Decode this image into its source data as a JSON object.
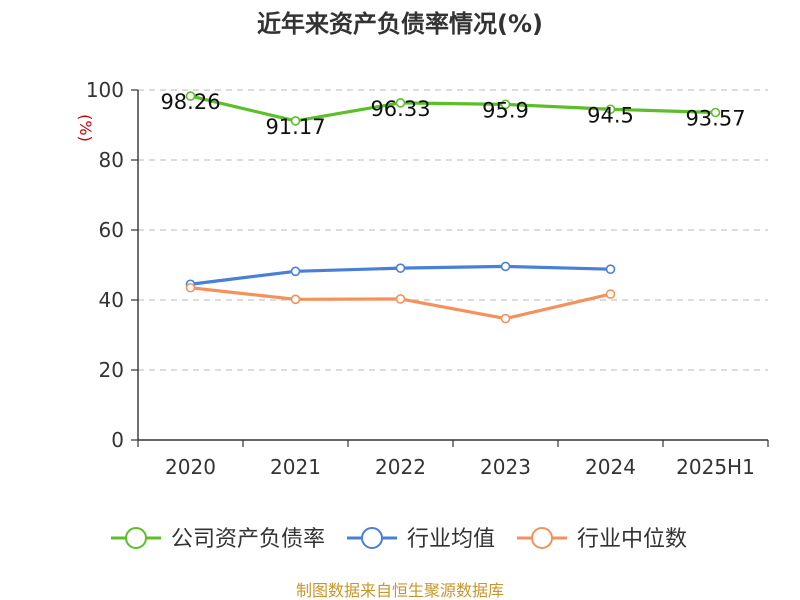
{
  "chart_data": {
    "type": "line",
    "title": "近年来资产负债率情况(%)",
    "ylabel": "(%)",
    "categories": [
      "2020",
      "2021",
      "2022",
      "2023",
      "2024",
      "2025H1"
    ],
    "ylim": [
      0,
      100
    ],
    "yticks": [
      "0",
      "20",
      "40",
      "60",
      "80",
      "100"
    ],
    "grid": true,
    "legend_position": "bottom",
    "series": [
      {
        "name": "公司资产负债率",
        "color": "#5cbf2a",
        "values": [
          98.26,
          91.17,
          96.33,
          95.9,
          94.5,
          93.57
        ],
        "labels": [
          "98.26",
          "91.17",
          "96.33",
          "95.9",
          "94.5",
          "93.57"
        ]
      },
      {
        "name": "行业均值",
        "color": "#4a7fd8",
        "values": [
          44.5,
          48.2,
          49.1,
          49.6,
          48.8,
          null
        ]
      },
      {
        "name": "行业中位数",
        "color": "#f5925c",
        "values": [
          43.5,
          40.2,
          40.3,
          34.7,
          41.7,
          null
        ]
      }
    ]
  },
  "footer": {
    "source": "制图数据来自恒生聚源数据库"
  }
}
